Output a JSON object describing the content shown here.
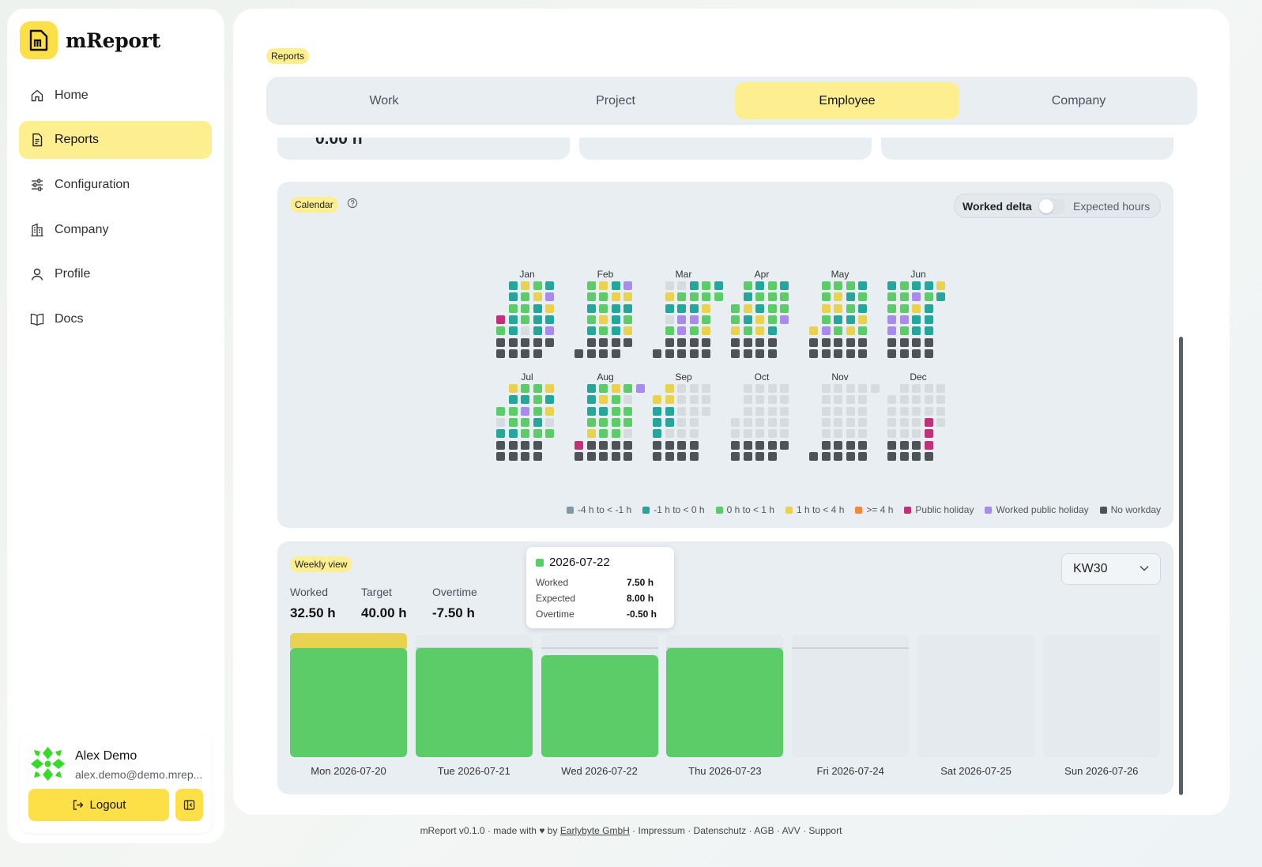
{
  "app": {
    "name": "mReport"
  },
  "sidebar": {
    "items": [
      {
        "label": "Home",
        "icon": "home-icon"
      },
      {
        "label": "Reports",
        "icon": "report-icon",
        "active": true
      },
      {
        "label": "Configuration",
        "icon": "sliders-icon"
      },
      {
        "label": "Company",
        "icon": "building-icon"
      },
      {
        "label": "Profile",
        "icon": "user-icon"
      },
      {
        "label": "Docs",
        "icon": "book-icon"
      }
    ]
  },
  "user": {
    "name": "Alex Demo",
    "email": "alex.demo@demo.mrep...",
    "logout_label": "Logout"
  },
  "page": {
    "badge": "Reports"
  },
  "tabs": [
    {
      "label": "Work"
    },
    {
      "label": "Project"
    },
    {
      "label": "Employee",
      "active": true
    },
    {
      "label": "Company"
    }
  ],
  "summary": {
    "first_value": "0.00 h"
  },
  "calendar": {
    "badge": "Calendar",
    "toggle": {
      "left_label": "Worked delta",
      "right_label": "Expected hours"
    },
    "months": [
      "Jan",
      "Feb",
      "Mar",
      "Apr",
      "May",
      "Jun",
      "Jul",
      "Aug",
      "Sep",
      "Oct",
      "Nov",
      "Dec"
    ],
    "legend": [
      {
        "label": "-4 h to < -1 h",
        "color": "#7d99a8"
      },
      {
        "label": "-1 h to < 0 h",
        "color": "#26a59a"
      },
      {
        "label": "0 h to < 1 h",
        "color": "#5ccc68"
      },
      {
        "label": "1 h to < 4 h",
        "color": "#e8d24f"
      },
      {
        "label": ">= 4 h",
        "color": "#f0883e"
      },
      {
        "label": "Public holiday",
        "color": "#c2307a"
      },
      {
        "label": "Worked public holiday",
        "color": "#a98bf0"
      },
      {
        "label": "No workday",
        "color": "#4f5358"
      }
    ]
  },
  "weekly": {
    "badge": "Weekly view",
    "stats": [
      {
        "label": "Worked",
        "value": "32.50 h"
      },
      {
        "label": "Target",
        "value": "40.00 h"
      },
      {
        "label": "Overtime",
        "value": "-7.50 h"
      }
    ],
    "week_select": "KW30",
    "days": [
      {
        "label": "Mon 2026-07-20",
        "worked": 8.5,
        "expected": 8
      },
      {
        "label": "Tue 2026-07-21",
        "worked": 8,
        "expected": 8
      },
      {
        "label": "Wed 2026-07-22",
        "worked": 7.5,
        "expected": 8
      },
      {
        "label": "Thu 2026-07-23",
        "worked": 8,
        "expected": 8
      },
      {
        "label": "Fri 2026-07-24",
        "worked": 0,
        "expected": 8
      },
      {
        "label": "Sat 2026-07-25",
        "worked": 0,
        "expected": 0
      },
      {
        "label": "Sun 2026-07-26",
        "worked": 0,
        "expected": 0
      }
    ],
    "tooltip": {
      "date": "2026-07-22",
      "rows": [
        {
          "label": "Worked",
          "value": "7.50 h"
        },
        {
          "label": "Expected",
          "value": "8.00 h"
        },
        {
          "label": "Overtime",
          "value": "-0.50 h"
        }
      ]
    }
  },
  "footer": {
    "prefix": "mReport v0.1.0 · made with",
    "by": "by",
    "company": "Earlybyte GmbH",
    "links": [
      "Impressum",
      "Datenschutz",
      "AGB",
      "AVV",
      "Support"
    ]
  }
}
